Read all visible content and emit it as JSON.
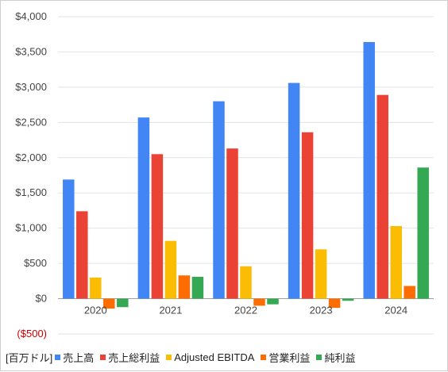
{
  "chart_data": {
    "type": "bar",
    "categories": [
      "2020",
      "2021",
      "2022",
      "2023",
      "2024"
    ],
    "series": [
      {
        "name": "売上高",
        "color": "#4285f4",
        "values": [
          1690,
          2570,
          2800,
          3060,
          3640
        ]
      },
      {
        "name": "売上総利益",
        "color": "#ea4335",
        "values": [
          1240,
          2050,
          2130,
          2360,
          2890
        ]
      },
      {
        "name": "Adjusted EBITDA",
        "color": "#fbbc04",
        "values": [
          300,
          820,
          460,
          700,
          1030
        ]
      },
      {
        "name": "営業利益",
        "color": "#ff6d01",
        "values": [
          -140,
          330,
          -100,
          -130,
          180
        ]
      },
      {
        "name": "純利益",
        "color": "#34a853",
        "values": [
          -120,
          310,
          -80,
          -30,
          1860
        ]
      }
    ],
    "y_ticks": [
      {
        "value": 4000,
        "label": "$4,000"
      },
      {
        "value": 3500,
        "label": "$3,500"
      },
      {
        "value": 3000,
        "label": "$3,000"
      },
      {
        "value": 2500,
        "label": "$2,500"
      },
      {
        "value": 2000,
        "label": "$2,000"
      },
      {
        "value": 1500,
        "label": "$1,500"
      },
      {
        "value": 1000,
        "label": "$1,000"
      },
      {
        "value": 500,
        "label": "$500"
      },
      {
        "value": 0,
        "label": "$0"
      },
      {
        "value": -500,
        "label": "($500)"
      }
    ],
    "ylim": [
      -500,
      4000
    ],
    "grid": true,
    "legend_position": "bottom",
    "unit_label": "[百万ドル]"
  }
}
